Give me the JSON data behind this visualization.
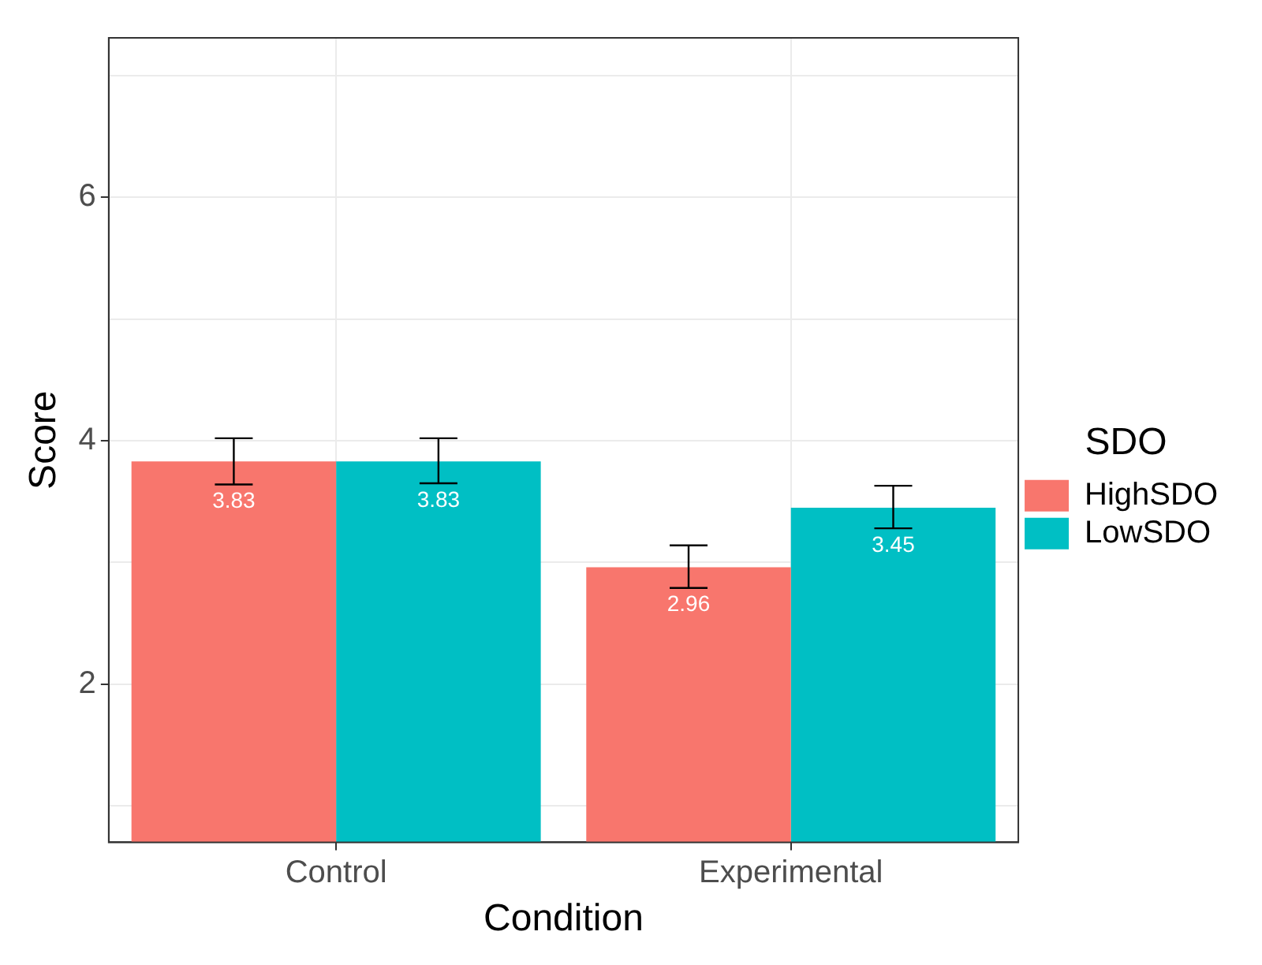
{
  "chart_data": {
    "type": "bar",
    "xlabel": "Condition",
    "ylabel": "Score",
    "legend_title": "SDO",
    "categories": [
      "Control",
      "Experimental"
    ],
    "series": [
      {
        "name": "HighSDO",
        "color": "#f8766d",
        "values": [
          3.83,
          2.96
        ],
        "errors": [
          [
            3.64,
            4.02
          ],
          [
            2.79,
            3.14
          ]
        ]
      },
      {
        "name": "LowSDO",
        "color": "#00bfc4",
        "values": [
          3.83,
          3.45
        ],
        "errors": [
          [
            3.65,
            4.02
          ],
          [
            3.28,
            3.63
          ]
        ]
      }
    ],
    "ylim": [
      0.7,
      7.31
    ],
    "yticks": [
      {
        "value": 1,
        "label": null
      },
      2,
      {
        "value": 3,
        "label": null
      },
      4,
      {
        "value": 5,
        "label": null
      },
      6,
      {
        "value": 7,
        "label": null
      }
    ],
    "grid": true,
    "legend": "right",
    "data_labels": true
  }
}
